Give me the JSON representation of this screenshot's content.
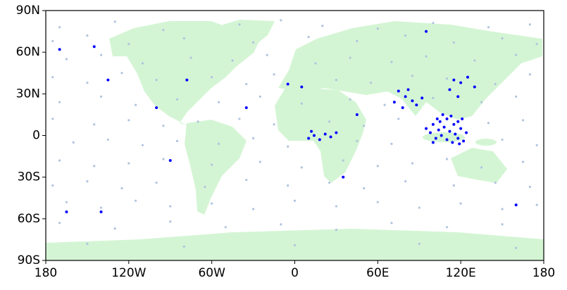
{
  "chart_data": {
    "type": "scatter",
    "xlim": [
      -180,
      180
    ],
    "ylim": [
      -90,
      90
    ],
    "xticks": [
      {
        "value": -180,
        "label": "180"
      },
      {
        "value": -120,
        "label": "120W"
      },
      {
        "value": -60,
        "label": "60W"
      },
      0,
      {
        "value": 60,
        "label": "60E"
      },
      {
        "value": 120,
        "label": "120E"
      },
      {
        "value": 180,
        "label": "180"
      }
    ],
    "yticks": [
      {
        "value": -90,
        "label": "90S"
      },
      {
        "value": -60,
        "label": "60S"
      },
      {
        "value": -30,
        "label": "30S"
      },
      0,
      {
        "value": 30,
        "label": "30N"
      },
      {
        "value": 60,
        "label": "60N"
      },
      {
        "value": 90,
        "label": "90N"
      }
    ],
    "series": [
      {
        "color": "#b0c4de",
        "x": [
          -170,
          -130,
          -95,
          -40,
          20,
          60,
          100,
          140,
          170,
          -10,
          -175,
          -150,
          -120,
          -80,
          -30,
          10,
          45,
          80,
          115,
          150,
          175,
          -165,
          -140,
          -110,
          -75,
          -45,
          -20,
          15,
          40,
          70,
          95,
          130,
          160,
          -175,
          -150,
          -125,
          -100,
          -60,
          -35,
          -15,
          30,
          55,
          85,
          110,
          145,
          170,
          -170,
          -140,
          -115,
          -85,
          -55,
          -25,
          5,
          40,
          65,
          100,
          135,
          160,
          -175,
          -145,
          -120,
          -95,
          -70,
          -40,
          -15,
          25,
          50,
          75,
          140,
          165,
          -160,
          -135,
          -110,
          -85,
          -55,
          -30,
          -5,
          45,
          70,
          150,
          175,
          -170,
          -145,
          -120,
          -95,
          -60,
          -25,
          5,
          35,
          60,
          85,
          110,
          135,
          165,
          -175,
          -150,
          -125,
          -100,
          -65,
          -35,
          -5,
          25,
          50,
          80,
          115,
          145,
          170,
          -165,
          -140,
          -115,
          -90,
          -60,
          -30,
          0,
          30,
          60,
          90,
          120,
          150,
          175,
          -170,
          -130,
          -90,
          -50,
          -10,
          30,
          70,
          110,
          150,
          -150,
          -80,
          0,
          90,
          160
        ],
        "values": [
          78,
          82,
          76,
          80,
          79,
          77,
          81,
          78,
          80,
          83,
          68,
          72,
          66,
          70,
          67,
          71,
          68,
          72,
          67,
          70,
          66,
          55,
          58,
          52,
          56,
          54,
          58,
          52,
          56,
          53,
          57,
          54,
          58,
          42,
          38,
          45,
          40,
          42,
          37,
          44,
          40,
          38,
          43,
          41,
          37,
          44,
          24,
          28,
          22,
          26,
          24,
          28,
          23,
          26,
          22,
          27,
          24,
          28,
          12,
          8,
          11,
          7,
          10,
          12,
          8,
          10,
          7,
          12,
          9,
          11,
          -5,
          -3,
          -7,
          -4,
          -6,
          -2,
          -8,
          -4,
          -6,
          -3,
          -7,
          -18,
          -22,
          -20,
          -17,
          -21,
          -19,
          -23,
          -18,
          -22,
          -20,
          -17,
          -23,
          -19,
          -36,
          -33,
          -38,
          -34,
          -37,
          -32,
          -36,
          -34,
          -38,
          -33,
          -36,
          -34,
          -37,
          -48,
          -52,
          -47,
          -51,
          -49,
          -53,
          -47,
          -51,
          -48,
          -52,
          -49,
          -53,
          -50,
          -63,
          -67,
          -62,
          -66,
          -64,
          -68,
          -63,
          -66,
          -64,
          -78,
          -80,
          -79,
          -78,
          -81
        ]
      },
      {
        "color": "#0000ff",
        "x": [
          95,
          98,
          100,
          102,
          104,
          105,
          106,
          108,
          110,
          110,
          112,
          114,
          115,
          116,
          118,
          118,
          120,
          122,
          124,
          100,
          107,
          113,
          103,
          119,
          121,
          75,
          80,
          85,
          88,
          78,
          92,
          82,
          72,
          115,
          120,
          125,
          112,
          118,
          10,
          14,
          18,
          22,
          26,
          30,
          12,
          35,
          -135,
          -78,
          -100,
          -145,
          -170,
          -35,
          5,
          45,
          -5,
          -90,
          -140,
          -165,
          95,
          160,
          130
        ],
        "values": [
          5,
          2,
          8,
          -2,
          4,
          10,
          0,
          6,
          -3,
          12,
          3,
          -5,
          8,
          1,
          -2,
          10,
          5,
          -4,
          2,
          -5,
          15,
          14,
          12,
          -6,
          12,
          32,
          28,
          25,
          22,
          20,
          27,
          33,
          24,
          40,
          38,
          42,
          33,
          28,
          -2,
          0,
          -3,
          1,
          -1,
          2,
          3,
          -30,
          40,
          40,
          20,
          64,
          62,
          20,
          35,
          15,
          37,
          -18,
          -55,
          -55,
          75,
          -50,
          35
        ]
      }
    ]
  }
}
